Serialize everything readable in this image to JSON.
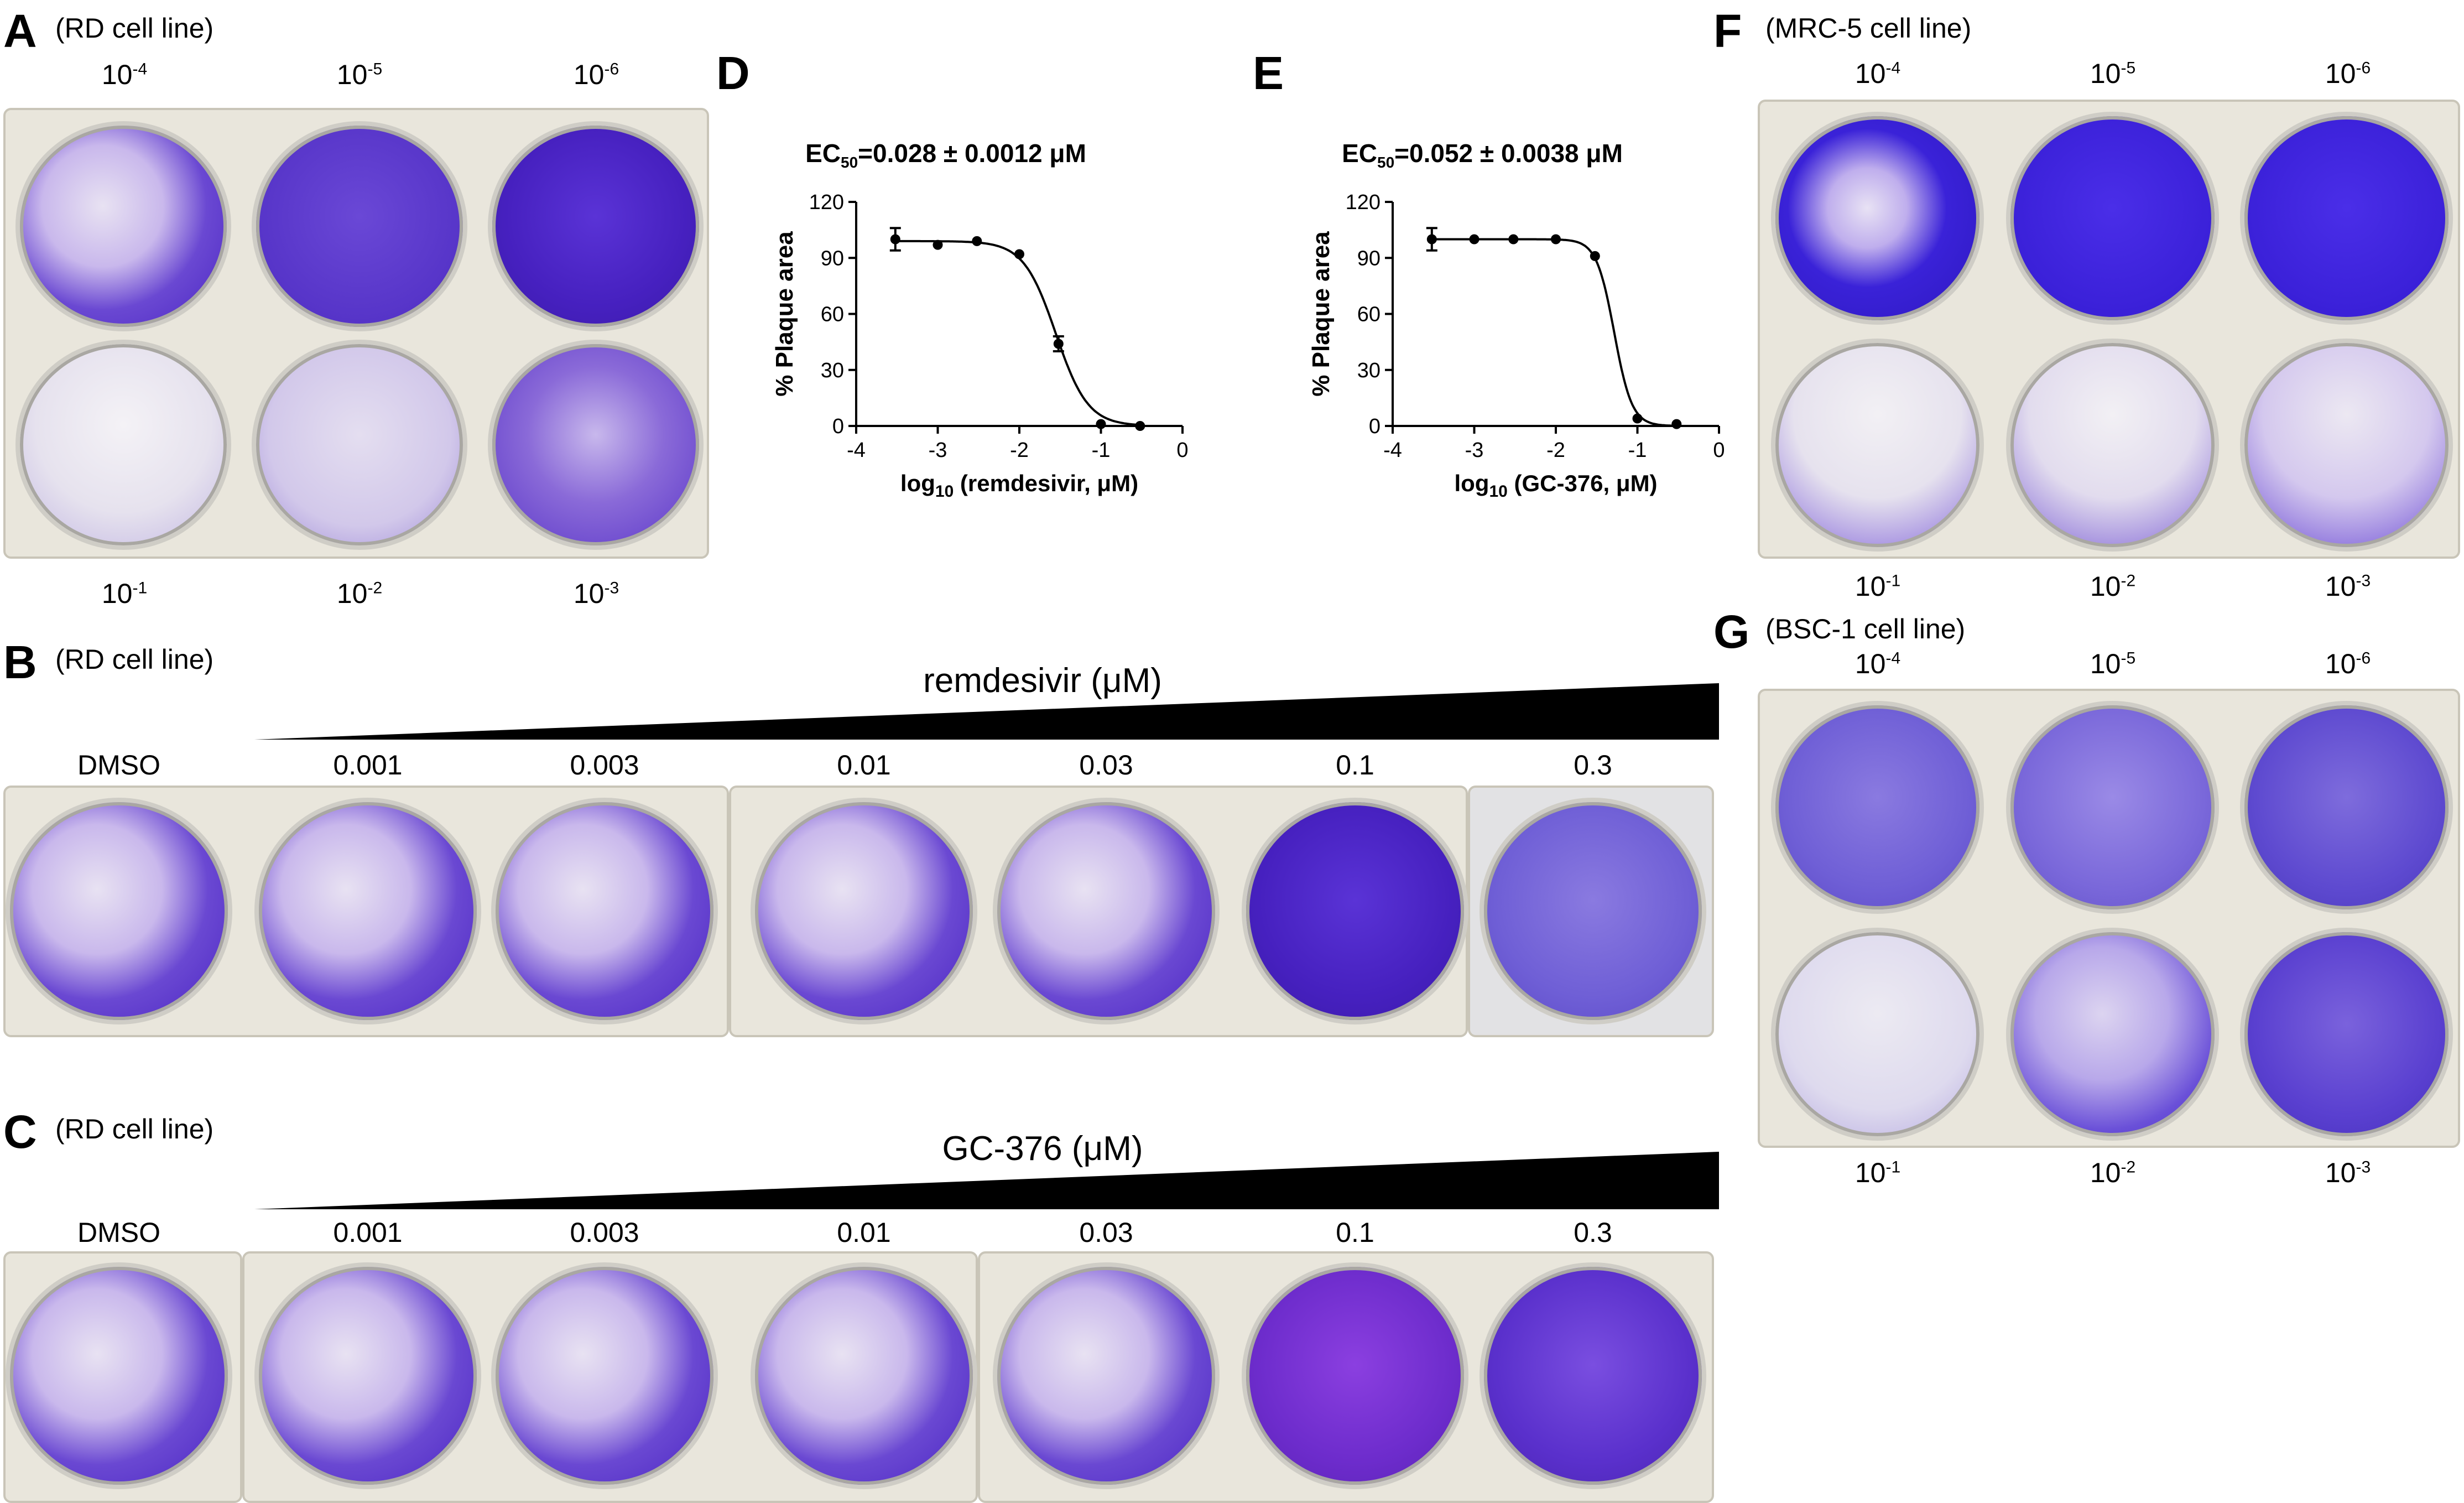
{
  "panels": {
    "A": {
      "letter": "A",
      "cell_line": "(RD cell line)",
      "top_labels": [
        {
          "base": "10",
          "exp": "-4"
        },
        {
          "base": "10",
          "exp": "-5"
        },
        {
          "base": "10",
          "exp": "-6"
        }
      ],
      "bottom_labels": [
        {
          "base": "10",
          "exp": "-1"
        },
        {
          "base": "10",
          "exp": "-2"
        },
        {
          "base": "10",
          "exp": "-3"
        }
      ]
    },
    "B": {
      "letter": "B",
      "cell_line": "(RD cell line)",
      "drug_label": "remdesivir (μM)",
      "well_labels": [
        "DMSO",
        "0.001",
        "0.003",
        "0.01",
        "0.03",
        "0.1",
        "0.3"
      ]
    },
    "C": {
      "letter": "C",
      "cell_line": "(RD cell line)",
      "drug_label": "GC-376 (μM)",
      "well_labels": [
        "DMSO",
        "0.001",
        "0.003",
        "0.01",
        "0.03",
        "0.1",
        "0.3"
      ]
    },
    "D": {
      "letter": "D"
    },
    "E": {
      "letter": "E"
    },
    "F": {
      "letter": "F",
      "cell_line": "(MRC-5 cell line)",
      "top_labels": [
        {
          "base": "10",
          "exp": "-4"
        },
        {
          "base": "10",
          "exp": "-5"
        },
        {
          "base": "10",
          "exp": "-6"
        }
      ],
      "bottom_labels": [
        {
          "base": "10",
          "exp": "-1"
        },
        {
          "base": "10",
          "exp": "-2"
        },
        {
          "base": "10",
          "exp": "-3"
        }
      ]
    },
    "G": {
      "letter": "G",
      "cell_line": "(BSC-1 cell line)",
      "top_labels": [
        {
          "base": "10",
          "exp": "-4"
        },
        {
          "base": "10",
          "exp": "-5"
        },
        {
          "base": "10",
          "exp": "-6"
        }
      ],
      "bottom_labels": [
        {
          "base": "10",
          "exp": "-1"
        },
        {
          "base": "10",
          "exp": "-2"
        },
        {
          "base": "10",
          "exp": "-3"
        }
      ]
    }
  },
  "chart_data": [
    {
      "type": "line",
      "panel": "D",
      "title": {
        "prefix": "EC",
        "sub": "50",
        "suffix": "=0.028 ± 0.0012 μM"
      },
      "xlabel": {
        "prefix": "log",
        "sub": "10",
        "suffix": " (remdesivir, μM)"
      },
      "ylabel": "% Plaque area",
      "xlim": [
        -4,
        0
      ],
      "ylim": [
        0,
        120
      ],
      "xticks": [
        -4,
        -3,
        -2,
        -1,
        0
      ],
      "yticks": [
        0,
        30,
        60,
        90,
        120
      ],
      "points": [
        {
          "x": -3.52,
          "y": 100,
          "err": 6
        },
        {
          "x": -3.0,
          "y": 97,
          "err": 0
        },
        {
          "x": -2.52,
          "y": 99,
          "err": 0
        },
        {
          "x": -2.0,
          "y": 92,
          "err": 0
        },
        {
          "x": -1.52,
          "y": 44,
          "err": 4
        },
        {
          "x": -1.0,
          "y": 1,
          "err": 0
        },
        {
          "x": -0.52,
          "y": 0,
          "err": 0
        }
      ],
      "fit": {
        "top": 99,
        "bottom": 0,
        "log_ec50": -1.553,
        "hill": 2.2
      }
    },
    {
      "type": "line",
      "panel": "E",
      "title": {
        "prefix": "EC",
        "sub": "50",
        "suffix": "=0.052 ± 0.0038 μM"
      },
      "xlabel": {
        "prefix": "log",
        "sub": "10",
        "suffix": " (GC-376, μM)"
      },
      "ylabel": "% Plaque area",
      "xlim": [
        -4,
        0
      ],
      "ylim": [
        0,
        120
      ],
      "xticks": [
        -4,
        -3,
        -2,
        -1,
        0
      ],
      "yticks": [
        0,
        30,
        60,
        90,
        120
      ],
      "points": [
        {
          "x": -3.52,
          "y": 100,
          "err": 6
        },
        {
          "x": -3.0,
          "y": 100,
          "err": 0
        },
        {
          "x": -2.52,
          "y": 100,
          "err": 0
        },
        {
          "x": -2.0,
          "y": 100,
          "err": 0
        },
        {
          "x": -1.52,
          "y": 91,
          "err": 0
        },
        {
          "x": -1.0,
          "y": 4,
          "err": 0
        },
        {
          "x": -0.52,
          "y": 1,
          "err": 0
        }
      ],
      "fit": {
        "top": 100,
        "bottom": 0,
        "log_ec50": -1.284,
        "hill": 4.0
      }
    }
  ]
}
